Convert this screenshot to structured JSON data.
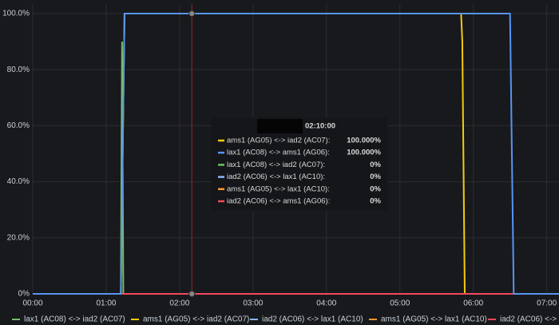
{
  "chart_data": {
    "type": "line",
    "xlim": [
      "00:00",
      "07:10"
    ],
    "xticks": [
      "00:00",
      "01:00",
      "02:00",
      "03:00",
      "04:00",
      "05:00",
      "06:00",
      "07:00"
    ],
    "ylim": [
      0,
      100
    ],
    "yticks": [
      {
        "value": 0,
        "label": "0%"
      },
      {
        "value": 20,
        "label": "20.0%"
      },
      {
        "value": 40,
        "label": "40.0%"
      },
      {
        "value": 60,
        "label": "60.0%"
      },
      {
        "value": 80,
        "label": "80.0%"
      },
      {
        "value": 100,
        "label": "100.0%"
      }
    ],
    "grid": true,
    "series": [
      {
        "name": "lax1 (AC08) <-> iad2 (AC07)",
        "color": "#73bf69",
        "x": [
          "00:00",
          "01:12",
          "01:13",
          "01:14",
          "07:10"
        ],
        "values": [
          0,
          0,
          90,
          0,
          0
        ]
      },
      {
        "name": "ams1 (AG05) <-> iad2 (AC07)",
        "color": "#f2cc0c",
        "x": [
          "00:00",
          "01:12",
          "01:15",
          "05:50",
          "05:51",
          "05:53",
          "07:10"
        ],
        "values": [
          0,
          0,
          100,
          100,
          90,
          0,
          0
        ]
      },
      {
        "name": "iad2 (AC06) <-> lax1 (AC10)",
        "color": "#8ab8ff",
        "x": [
          "00:00",
          "07:10"
        ],
        "values": [
          0,
          0
        ]
      },
      {
        "name": "ams1 (AG05) <-> lax1 (AC10)",
        "color": "#ff9830",
        "x": [
          "00:00",
          "07:10"
        ],
        "values": [
          0,
          0
        ]
      },
      {
        "name": "iad2 (AC06) <-> ams1 (AG06)",
        "color": "#f2495c",
        "x": [
          "00:00",
          "07:10"
        ],
        "values": [
          0,
          0
        ]
      },
      {
        "name": "lax1 (AC08) <-> ams1 (AG06)",
        "color": "#5794f2",
        "x": [
          "00:00",
          "01:12",
          "01:15",
          "06:30",
          "06:33",
          "07:10"
        ],
        "values": [
          0,
          0,
          100,
          100,
          0,
          0
        ]
      }
    ],
    "tooltip": {
      "time": "02:10:00",
      "x": "02:10",
      "rows": [
        {
          "name": "ams1 (AG05) <-> iad2 (AC07):",
          "color": "#f2cc0c",
          "value": 100,
          "value_label": "100.000%"
        },
        {
          "name": "lax1 (AC08) <-> ams1 (AG06):",
          "color": "#5794f2",
          "value": 100,
          "value_label": "100.000%"
        },
        {
          "name": "lax1 (AC08) <-> iad2 (AC07):",
          "color": "#73bf69",
          "value": 0,
          "value_label": "0%"
        },
        {
          "name": "iad2 (AC06) <-> lax1 (AC10):",
          "color": "#8ab8ff",
          "value": 0,
          "value_label": "0%"
        },
        {
          "name": "ams1 (AG05) <-> lax1 (AC10):",
          "color": "#ff9830",
          "value": 0,
          "value_label": "0%"
        },
        {
          "name": "iad2 (AC06) <-> ams1 (AG06):",
          "color": "#f2495c",
          "value": 0,
          "value_label": "0%"
        }
      ]
    }
  }
}
